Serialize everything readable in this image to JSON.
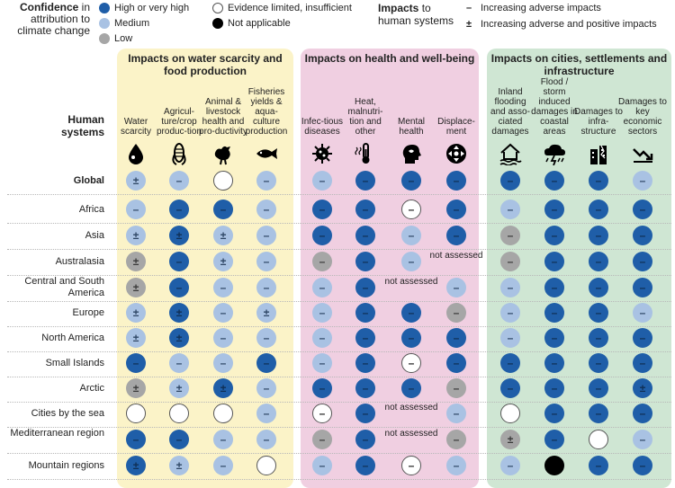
{
  "legend": {
    "confidence_title_bold": "Confidence",
    "confidence_title_rest": "in attribution to climate change",
    "items": [
      {
        "key": "high",
        "label": "High or very high",
        "color": "#1f5ea8"
      },
      {
        "key": "medium",
        "label": "Medium",
        "color": "#a9c2e3"
      },
      {
        "key": "low",
        "label": "Low",
        "color": "#a6a6a6"
      },
      {
        "key": "evidence",
        "label": "Evidence limited, insufficient",
        "color": "#ffffff"
      },
      {
        "key": "na",
        "label": "Not applicable",
        "color": "#000000"
      }
    ],
    "impacts_title_bold": "Impacts",
    "impacts_title_rest": "to human systems",
    "impacts": [
      {
        "symbol": "–",
        "label": "Increasing adverse impacts"
      },
      {
        "symbol": "±",
        "label": "Increasing adverse and positive impacts"
      }
    ]
  },
  "human_systems_label": "Human systems",
  "groups": [
    {
      "title": "Impacts on water scarcity and food production",
      "color": "#fbf3c8"
    },
    {
      "title": "Impacts on health and well-being",
      "color": "#f0cfe1"
    },
    {
      "title": "Impacts on cities, settlements and infrastructure",
      "color": "#cfe6d3"
    }
  ],
  "columns": [
    {
      "label": "Water scarcity",
      "icon": "water-drop-icon"
    },
    {
      "label": "Agricul-ture/crop produc-tion",
      "icon": "corn-icon"
    },
    {
      "label": "Animal & livestock health and pro-ductivity",
      "icon": "chicken-icon"
    },
    {
      "label": "Fisheries yields & aqua-culture production",
      "icon": "fish-icon"
    },
    {
      "label": "Infec-tious diseases",
      "icon": "virus-icon"
    },
    {
      "label": "Heat, malnutri-tion and other",
      "icon": "thermometer-icon"
    },
    {
      "label": "Mental health",
      "icon": "head-icon"
    },
    {
      "label": "Displace-ment",
      "icon": "displacement-icon"
    },
    {
      "label": "Inland flooding and asso-ciated damages",
      "icon": "flooded-house-icon"
    },
    {
      "label": "Flood / storm induced damages in coastal areas",
      "icon": "storm-cloud-icon"
    },
    {
      "label": "Damages to infra-structure",
      "icon": "damaged-building-icon"
    },
    {
      "label": "Damages to key economic sectors",
      "icon": "declining-trend-icon"
    }
  ],
  "not_assessed_text": "not assessed",
  "rows": [
    {
      "label": "Global",
      "cells": [
        [
          "medium",
          "±"
        ],
        [
          "medium",
          "–"
        ],
        [
          "evidence",
          ""
        ],
        [
          "medium",
          "–"
        ],
        [
          "medium",
          "–"
        ],
        [
          "high",
          "–"
        ],
        [
          "high",
          "–"
        ],
        [
          "high",
          "–"
        ],
        [
          "high",
          "–"
        ],
        [
          "high",
          "–"
        ],
        [
          "high",
          "–"
        ],
        [
          "medium",
          "–"
        ]
      ]
    },
    {
      "label": "Africa",
      "cells": [
        [
          "medium",
          "–"
        ],
        [
          "high",
          "–"
        ],
        [
          "high",
          "–"
        ],
        [
          "medium",
          "–"
        ],
        [
          "high",
          "–"
        ],
        [
          "high",
          "–"
        ],
        [
          "evidence",
          "–"
        ],
        [
          "high",
          "–"
        ],
        [
          "medium",
          "–"
        ],
        [
          "high",
          "–"
        ],
        [
          "high",
          "–"
        ],
        [
          "high",
          "–"
        ]
      ]
    },
    {
      "label": "Asia",
      "cells": [
        [
          "medium",
          "±"
        ],
        [
          "high",
          "±"
        ],
        [
          "medium",
          "±"
        ],
        [
          "medium",
          "–"
        ],
        [
          "high",
          "–"
        ],
        [
          "high",
          "–"
        ],
        [
          "medium",
          "–"
        ],
        [
          "high",
          "–"
        ],
        [
          "low",
          "–"
        ],
        [
          "high",
          "–"
        ],
        [
          "high",
          "–"
        ],
        [
          "high",
          "–"
        ]
      ]
    },
    {
      "label": "Australasia",
      "cells": [
        [
          "low",
          "±"
        ],
        [
          "high",
          "–"
        ],
        [
          "medium",
          "±"
        ],
        [
          "medium",
          "–"
        ],
        [
          "low",
          "–"
        ],
        [
          "high",
          "–"
        ],
        [
          "medium",
          "–"
        ],
        [
          "na_text",
          ""
        ],
        [
          "low",
          "–"
        ],
        [
          "high",
          "–"
        ],
        [
          "high",
          "–"
        ],
        [
          "high",
          "–"
        ]
      ]
    },
    {
      "label": "Central and South America",
      "cells": [
        [
          "low",
          "±"
        ],
        [
          "high",
          "–"
        ],
        [
          "medium",
          "–"
        ],
        [
          "medium",
          "–"
        ],
        [
          "medium",
          "–"
        ],
        [
          "high",
          "–"
        ],
        [
          "na_text",
          ""
        ],
        [
          "medium",
          "–"
        ],
        [
          "medium",
          "–"
        ],
        [
          "high",
          "–"
        ],
        [
          "high",
          "–"
        ],
        [
          "high",
          "–"
        ]
      ]
    },
    {
      "label": "Europe",
      "cells": [
        [
          "medium",
          "±"
        ],
        [
          "high",
          "±"
        ],
        [
          "medium",
          "–"
        ],
        [
          "medium",
          "±"
        ],
        [
          "medium",
          "–"
        ],
        [
          "high",
          "–"
        ],
        [
          "high",
          "–"
        ],
        [
          "low",
          "–"
        ],
        [
          "medium",
          "–"
        ],
        [
          "high",
          "–"
        ],
        [
          "high",
          "–"
        ],
        [
          "medium",
          "–"
        ]
      ]
    },
    {
      "label": "North America",
      "cells": [
        [
          "medium",
          "±"
        ],
        [
          "high",
          "±"
        ],
        [
          "medium",
          "–"
        ],
        [
          "medium",
          "–"
        ],
        [
          "medium",
          "–"
        ],
        [
          "high",
          "–"
        ],
        [
          "high",
          "–"
        ],
        [
          "high",
          "–"
        ],
        [
          "medium",
          "–"
        ],
        [
          "high",
          "–"
        ],
        [
          "high",
          "–"
        ],
        [
          "high",
          "–"
        ]
      ]
    },
    {
      "label": "Small Islands",
      "cells": [
        [
          "high",
          "–"
        ],
        [
          "medium",
          "–"
        ],
        [
          "medium",
          "–"
        ],
        [
          "high",
          "–"
        ],
        [
          "medium",
          "–"
        ],
        [
          "high",
          "–"
        ],
        [
          "evidence",
          "–"
        ],
        [
          "high",
          "–"
        ],
        [
          "high",
          "–"
        ],
        [
          "high",
          "–"
        ],
        [
          "high",
          "–"
        ],
        [
          "high",
          "–"
        ]
      ]
    },
    {
      "label": "Arctic",
      "cells": [
        [
          "low",
          "±"
        ],
        [
          "medium",
          "±"
        ],
        [
          "high",
          "±"
        ],
        [
          "medium",
          "–"
        ],
        [
          "high",
          "–"
        ],
        [
          "high",
          "–"
        ],
        [
          "high",
          "–"
        ],
        [
          "low",
          "–"
        ],
        [
          "high",
          "–"
        ],
        [
          "high",
          "–"
        ],
        [
          "high",
          "–"
        ],
        [
          "high",
          "±"
        ]
      ]
    },
    {
      "label": "Cities by the sea",
      "cells": [
        [
          "evidence",
          ""
        ],
        [
          "evidence",
          ""
        ],
        [
          "evidence",
          ""
        ],
        [
          "medium",
          "–"
        ],
        [
          "evidence",
          "–"
        ],
        [
          "high",
          "–"
        ],
        [
          "na_text",
          ""
        ],
        [
          "medium",
          "–"
        ],
        [
          "evidence",
          ""
        ],
        [
          "high",
          "–"
        ],
        [
          "high",
          "–"
        ],
        [
          "high",
          "–"
        ]
      ]
    },
    {
      "label": "Mediterranean region",
      "cells": [
        [
          "high",
          "–"
        ],
        [
          "high",
          "–"
        ],
        [
          "medium",
          "–"
        ],
        [
          "medium",
          "–"
        ],
        [
          "low",
          "–"
        ],
        [
          "high",
          "–"
        ],
        [
          "na_text",
          ""
        ],
        [
          "low",
          "–"
        ],
        [
          "low",
          "±"
        ],
        [
          "high",
          "–"
        ],
        [
          "evidence",
          ""
        ],
        [
          "medium",
          "–"
        ]
      ]
    },
    {
      "label": "Mountain regions",
      "cells": [
        [
          "high",
          "±"
        ],
        [
          "medium",
          "±"
        ],
        [
          "medium",
          "–"
        ],
        [
          "evidence",
          ""
        ],
        [
          "medium",
          "–"
        ],
        [
          "high",
          "–"
        ],
        [
          "evidence",
          "–"
        ],
        [
          "medium",
          "–"
        ],
        [
          "medium",
          "–"
        ],
        [
          "na",
          ""
        ],
        [
          "high",
          "–"
        ],
        [
          "high",
          "–"
        ]
      ]
    }
  ]
}
